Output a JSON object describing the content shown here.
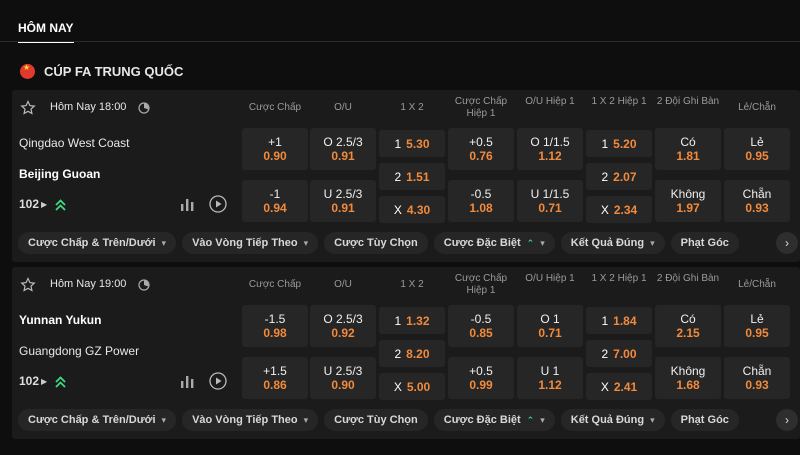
{
  "section_title": "HÔM NAY",
  "league": {
    "name": "CÚP FA TRUNG QUỐC"
  },
  "columns": [
    "Cược Chấp",
    "O/U",
    "1 X 2",
    "Cược Chấp Hiệp 1",
    "O/U Hiệp 1",
    "1 X 2 Hiệp 1",
    "2 Đội Ghi Bàn",
    "Lẻ/Chẵn"
  ],
  "chips": [
    "Cược Chấp & Trên/Dưới",
    "Vào Vòng Tiếp Theo",
    "Cược Tùy Chọn",
    "Cược Đặc Biệt",
    "Kết Quả Đúng",
    "Phạt Góc"
  ],
  "matches": [
    {
      "kickoff": "Hôm Nay 18:00",
      "home": "Qingdao West Coast",
      "away": "Beijing Guoan",
      "market_count": "102",
      "hdp": [
        {
          "line": "+1",
          "odds": "0.90"
        },
        {
          "line": "-1",
          "odds": "0.94"
        }
      ],
      "ou": [
        {
          "line": "O 2.5/3",
          "odds": "0.91"
        },
        {
          "line": "U 2.5/3",
          "odds": "0.91"
        }
      ],
      "x12": [
        {
          "label": "1",
          "odds": "5.30"
        },
        {
          "label": "2",
          "odds": "1.51"
        },
        {
          "label": "X",
          "odds": "4.30"
        }
      ],
      "hdp_h1": [
        {
          "line": "+0.5",
          "odds": "0.76"
        },
        {
          "line": "-0.5",
          "odds": "1.08"
        }
      ],
      "ou_h1": [
        {
          "line": "O 1/1.5",
          "odds": "1.12"
        },
        {
          "line": "U 1/1.5",
          "odds": "0.71"
        }
      ],
      "x12_h1": [
        {
          "label": "1",
          "odds": "5.20"
        },
        {
          "label": "2",
          "odds": "2.07"
        },
        {
          "label": "X",
          "odds": "2.34"
        }
      ],
      "btts": [
        {
          "label": "Có",
          "odds": "1.81"
        },
        {
          "label": "Không",
          "odds": "1.97"
        }
      ],
      "oe": [
        {
          "label": "Lẻ",
          "odds": "0.95"
        },
        {
          "label": "Chẵn",
          "odds": "0.93"
        }
      ]
    },
    {
      "kickoff": "Hôm Nay 19:00",
      "home": "Yunnan Yukun",
      "away": "Guangdong GZ Power",
      "market_count": "102",
      "hdp": [
        {
          "line": "-1.5",
          "odds": "0.98"
        },
        {
          "line": "+1.5",
          "odds": "0.86"
        }
      ],
      "ou": [
        {
          "line": "O 2.5/3",
          "odds": "0.92"
        },
        {
          "line": "U 2.5/3",
          "odds": "0.90"
        }
      ],
      "x12": [
        {
          "label": "1",
          "odds": "1.32"
        },
        {
          "label": "2",
          "odds": "8.20"
        },
        {
          "label": "X",
          "odds": "5.00"
        }
      ],
      "hdp_h1": [
        {
          "line": "-0.5",
          "odds": "0.85"
        },
        {
          "line": "+0.5",
          "odds": "0.99"
        }
      ],
      "ou_h1": [
        {
          "line": "O 1",
          "odds": "0.71"
        },
        {
          "line": "U 1",
          "odds": "1.12"
        }
      ],
      "x12_h1": [
        {
          "label": "1",
          "odds": "1.84"
        },
        {
          "label": "2",
          "odds": "7.00"
        },
        {
          "label": "X",
          "odds": "2.41"
        }
      ],
      "btts": [
        {
          "label": "Có",
          "odds": "2.15"
        },
        {
          "label": "Không",
          "odds": "1.68"
        }
      ],
      "oe": [
        {
          "label": "Lẻ",
          "odds": "0.95"
        },
        {
          "label": "Chẵn",
          "odds": "0.93"
        }
      ]
    }
  ],
  "colors": {
    "odds": "#f28a3c",
    "accent_green": "#3ddc84",
    "flag_red": "#e03a2f",
    "card_bg": "#1b1b1b"
  }
}
